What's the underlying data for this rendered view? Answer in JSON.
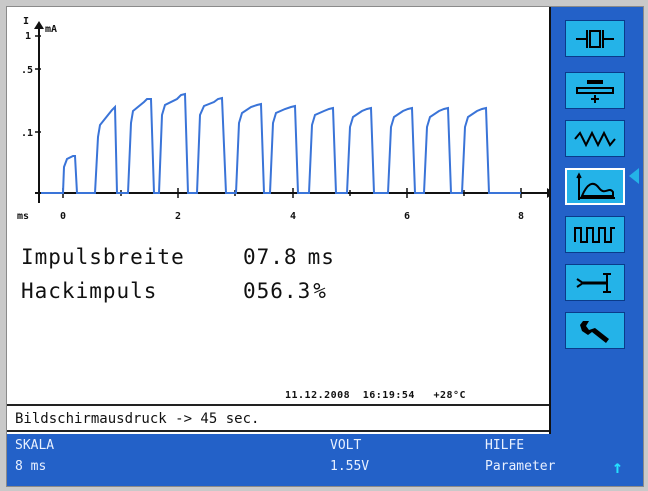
{
  "plot": {
    "y_axis_unit": "mA",
    "y_axis_symbol": "I",
    "y_ticks": [
      "1",
      ".5",
      ".1"
    ],
    "x_axis_unit": "ms",
    "x_ticks": [
      "0",
      "2",
      "4",
      "6",
      "8"
    ],
    "trace_color": "#3a74d8"
  },
  "readouts": {
    "pulse_width_label": "Impulsbreite",
    "pulse_width_value": "07.8",
    "pulse_width_unit": "ms",
    "chopped_label": "Hackimpuls",
    "chopped_value": "056.3",
    "chopped_unit": "%"
  },
  "status": {
    "date": "11.12.2008",
    "time": "16:19:54",
    "temperature": "+28°C"
  },
  "message": "Bildschirmausdruck -> 45 sec.",
  "sidebar": {
    "items": [
      {
        "icon": "electrode-icon",
        "active": false
      },
      {
        "icon": "plate-electrode-icon",
        "active": false
      },
      {
        "icon": "zigzag-wave-icon",
        "active": false
      },
      {
        "icon": "curve-graph-icon",
        "active": true
      },
      {
        "icon": "square-wave-icon",
        "active": false
      },
      {
        "icon": "probe-icon",
        "active": false
      },
      {
        "icon": "wrench-icon",
        "active": false
      }
    ]
  },
  "bottom_bar": {
    "scale_label": "SKALA",
    "scale_value": "8 ms",
    "volt_label": "VOLT",
    "volt_value": "1.55V",
    "help_label": "HILFE",
    "help_value": "Parameter"
  },
  "colors": {
    "panel_blue": "#2361c8",
    "button_cyan": "#24b3e8",
    "trace_blue": "#3a74d8"
  }
}
